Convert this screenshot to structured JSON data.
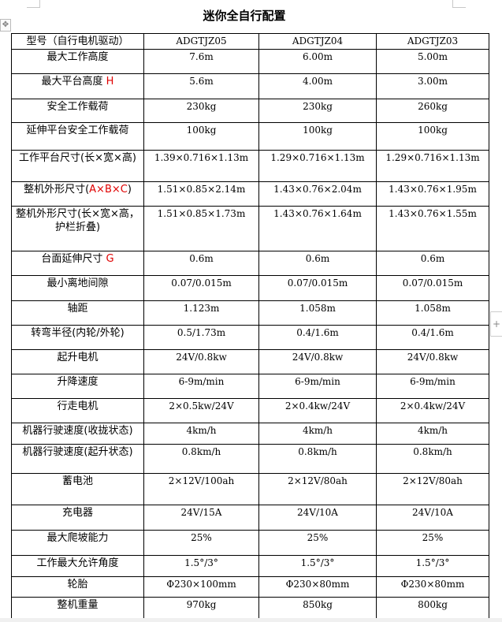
{
  "title": "迷你全自行配置",
  "header": {
    "label": "型号（自行电机驱动）",
    "models": [
      "ADGTJZ05",
      "ADGTJZ04",
      "ADGTJZ03"
    ]
  },
  "rows": [
    {
      "label": "最大工作高度",
      "red": "",
      "after": "",
      "values": [
        "7.6m",
        "6.00m",
        "5.00m"
      ]
    },
    {
      "label": "最大平台高度 ",
      "red": "H",
      "after": "",
      "values": [
        "5.6m",
        "4.00m",
        "3.00m"
      ]
    },
    {
      "label": "安全工作载荷",
      "red": "",
      "after": "",
      "values": [
        "230kg",
        "230kg",
        "260kg"
      ]
    },
    {
      "label": "延伸平台安全工作载荷",
      "red": "",
      "after": "",
      "values": [
        "100kg",
        "100kg",
        "100kg"
      ]
    },
    {
      "label": "工作平台尺寸(长×宽×高)",
      "red": "",
      "after": "",
      "values": [
        "1.39×0.716×1.13m",
        "1.29×0.716×1.13m",
        "1.29×0.716×1.13m"
      ]
    },
    {
      "label": "整机外形尺寸(",
      "red": "A×B×C",
      "after": ")",
      "values": [
        "1.51×0.85×2.14m",
        "1.43×0.76×2.04m",
        "1.43×0.76×1.95m"
      ]
    },
    {
      "label": "整机外形尺寸(长×宽×高，护栏折叠)",
      "red": "",
      "after": "",
      "values": [
        "1.51×0.85×1.73m",
        "1.43×0.76×1.64m",
        "1.43×0.76×1.55m"
      ]
    },
    {
      "label": "台面延伸尺寸 ",
      "red": "G",
      "after": "",
      "values": [
        "0.6m",
        "0.6m",
        "0.6m"
      ]
    },
    {
      "label": "最小离地间隙",
      "red": "",
      "after": "",
      "values": [
        "0.07/0.015m",
        "0.07/0.015m",
        "0.07/0.015m"
      ]
    },
    {
      "label": "轴距",
      "red": "",
      "after": "",
      "values": [
        "1.123m",
        "1.058m",
        "1.058m"
      ]
    },
    {
      "label": "转弯半径(内轮/外轮)",
      "red": "",
      "after": "",
      "values": [
        "0.5/1.73m",
        "0.4/1.6m",
        "0.4/1.6m"
      ]
    },
    {
      "label": "起升电机",
      "red": "",
      "after": "",
      "values": [
        "24V/0.8kw",
        "24V/0.8kw",
        "24V/0.8kw"
      ]
    },
    {
      "label": "升降速度",
      "red": "",
      "after": "",
      "values": [
        "6-9m/min",
        "6-9m/min",
        "6-9m/min"
      ]
    },
    {
      "label": "行走电机",
      "red": "",
      "after": "",
      "values": [
        "2×0.5kw/24V",
        "2×0.4kw/24V",
        "2×0.4kw/24V"
      ]
    },
    {
      "label": "机器行驶速度(收拢状态)",
      "red": "",
      "after": "",
      "values": [
        "4km/h",
        "4km/h",
        "4km/h"
      ]
    },
    {
      "label": "机器行驶速度(起升状态)",
      "red": "",
      "after": "",
      "values": [
        "0.8km/h",
        "0.8km/h",
        "0.8km/h"
      ]
    },
    {
      "label": "蓄电池",
      "red": "",
      "after": "",
      "values": [
        "2×12V/100ah",
        "2×12V/80ah",
        "2×12V/80ah"
      ]
    },
    {
      "label": "充电器",
      "red": "",
      "after": "",
      "values": [
        "24V/15A",
        "24V/10A",
        "24V/10A"
      ]
    },
    {
      "label": "最大爬坡能力",
      "red": "",
      "after": "",
      "values": [
        "25%",
        "25%",
        "25%"
      ]
    },
    {
      "label": "工作最大允许角度",
      "red": "",
      "after": "",
      "values": [
        "1.5°/3°",
        "1.5°/3°",
        "1.5°/3°"
      ]
    },
    {
      "label": "轮胎",
      "red": "",
      "after": "",
      "values": [
        "Φ230×100mm",
        "Φ230×80mm",
        "Φ230×80mm"
      ]
    },
    {
      "label": "整机重量",
      "red": "",
      "after": "",
      "values": [
        "970kg",
        "850kg",
        "800kg"
      ]
    }
  ],
  "icons": {
    "move_handle": "move-icon",
    "add_column": "plus-icon"
  },
  "colors": {
    "highlight": "#e00000"
  }
}
